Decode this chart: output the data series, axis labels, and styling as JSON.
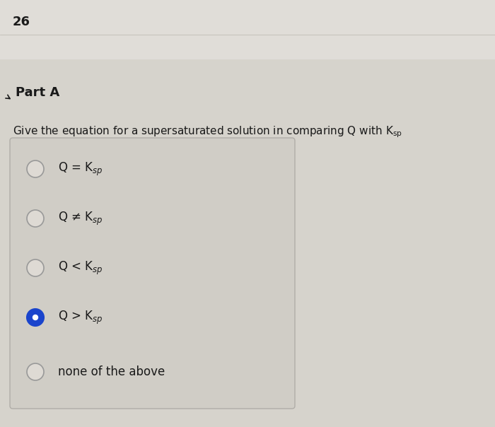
{
  "question_number": "26",
  "part_label": "Part A",
  "question_text": "Give the equation for a supersaturated solution in comparing Q with K",
  "options": [
    {
      "text": "Q = K$_{sp}$",
      "selected": false
    },
    {
      "text": "Q ≠ K$_{sp}$",
      "selected": false
    },
    {
      "text": "Q < K$_{sp}$",
      "selected": false
    },
    {
      "text": "Q > K$_{sp}$",
      "selected": true
    },
    {
      "text": "none of the above",
      "selected": false
    }
  ],
  "fig_bg_color": "#d6d3cc",
  "top_bg_color": "#e0ddd8",
  "box_bg_color": "#d0cdc6",
  "box_edge_color": "#b0ada8",
  "selected_fill": "#1a44cc",
  "unselected_edge": "#999999",
  "unselected_fill": "#dedad4",
  "text_color": "#1a1a1a",
  "part_arrow_color": "#1a1a1a"
}
